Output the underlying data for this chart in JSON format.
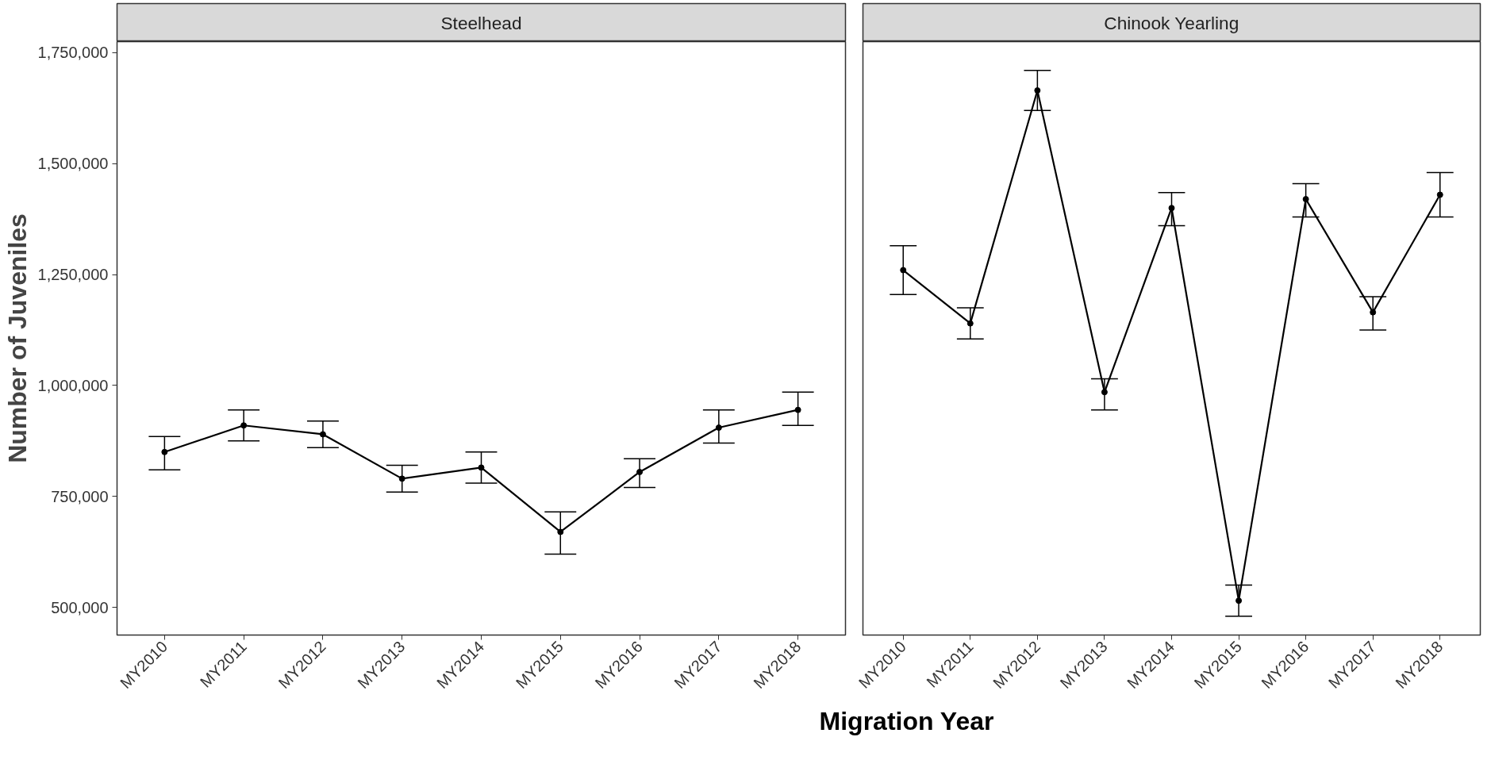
{
  "chart_data": [
    {
      "type": "line",
      "title": "Steelhead",
      "xlabel": "Migration Year",
      "ylabel": "Number of Juveniles",
      "categories": [
        "MY2010",
        "MY2011",
        "MY2012",
        "MY2013",
        "MY2014",
        "MY2015",
        "MY2016",
        "MY2017",
        "MY2018"
      ],
      "series": [
        {
          "color": "#000000",
          "values": [
            850000,
            910000,
            890000,
            790000,
            815000,
            670000,
            805000,
            905000,
            945000
          ],
          "errors": [
            [
              810000,
              885000
            ],
            [
              875000,
              945000
            ],
            [
              860000,
              920000
            ],
            [
              760000,
              820000
            ],
            [
              780000,
              850000
            ],
            [
              620000,
              715000
            ],
            [
              770000,
              835000
            ],
            [
              870000,
              945000
            ],
            [
              910000,
              985000
            ]
          ]
        }
      ],
      "ylim": [
        437500,
        1775000
      ],
      "yticks": [
        {
          "value": 500000,
          "label": "500,000"
        },
        {
          "value": 750000,
          "label": "750,000"
        },
        {
          "value": 1000000,
          "label": "1,000,000"
        },
        {
          "value": 1250000,
          "label": "1,250,000"
        },
        {
          "value": 1500000,
          "label": "1,500,000"
        },
        {
          "value": 1750000,
          "label": "1,750,000"
        }
      ],
      "grid": false,
      "marker": "circle",
      "line_style": "solid"
    },
    {
      "type": "line",
      "title": "Chinook Yearling",
      "categories": [
        "MY2010",
        "MY2011",
        "MY2012",
        "MY2013",
        "MY2014",
        "MY2015",
        "MY2016",
        "MY2017",
        "MY2018"
      ],
      "series": [
        {
          "color": "#000000",
          "values": [
            1260000,
            1140000,
            1665000,
            985000,
            1400000,
            515000,
            1420000,
            1165000,
            1430000
          ],
          "errors": [
            [
              1205000,
              1315000
            ],
            [
              1105000,
              1175000
            ],
            [
              1620000,
              1710000
            ],
            [
              945000,
              1015000
            ],
            [
              1360000,
              1435000
            ],
            [
              480000,
              550000
            ],
            [
              1380000,
              1455000
            ],
            [
              1125000,
              1200000
            ],
            [
              1380000,
              1480000
            ]
          ]
        }
      ],
      "ylim": [
        437500,
        1775000
      ],
      "tick_labels": "x",
      "grid": false,
      "marker": "circle",
      "line_style": "solid"
    }
  ]
}
